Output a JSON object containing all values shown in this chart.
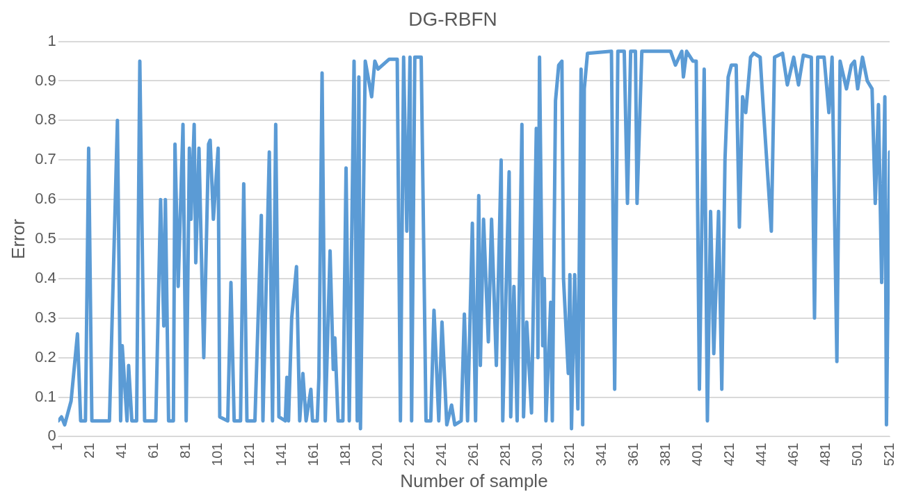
{
  "chart_data": {
    "type": "line",
    "title": "DG-RBFN",
    "xlabel": "Number of sample",
    "ylabel": "Error",
    "xlim": [
      1,
      521
    ],
    "xticks": [
      1,
      21,
      41,
      61,
      81,
      101,
      121,
      141,
      161,
      181,
      201,
      221,
      241,
      261,
      281,
      301,
      321,
      341,
      361,
      381,
      401,
      421,
      441,
      461,
      481,
      501,
      521
    ],
    "ylim": [
      0,
      1
    ],
    "yticks": [
      0,
      0.1,
      0.2,
      0.3,
      0.4,
      0.5,
      0.6,
      0.7,
      0.8,
      0.9,
      1
    ],
    "grid": "y",
    "legend": false,
    "marker": "none",
    "line_style": "solid",
    "series": [
      {
        "color": "#5b9bd5",
        "x": [
          1,
          3,
          5,
          9,
          13,
          15,
          18,
          20,
          22,
          33,
          38,
          40,
          41,
          44,
          45,
          47,
          50,
          52,
          55,
          62,
          65,
          67,
          68,
          70,
          73,
          74,
          76,
          79,
          81,
          83,
          84,
          86,
          87,
          89,
          92,
          95,
          96,
          98,
          101,
          102,
          107,
          109,
          111,
          115,
          117,
          119,
          124,
          128,
          129,
          133,
          135,
          137,
          139,
          143,
          144,
          145,
          147,
          150,
          152,
          154,
          156,
          159,
          160,
          163,
          164,
          166,
          168,
          171,
          173,
          174,
          176,
          179,
          181,
          183,
          186,
          188,
          189,
          190,
          193,
          197,
          199,
          201,
          208,
          213,
          215,
          217,
          219,
          221,
          222,
          224,
          228,
          231,
          234,
          236,
          239,
          241,
          244,
          247,
          249,
          253,
          255,
          257,
          260,
          262,
          264,
          265,
          267,
          270,
          272,
          275,
          278,
          279,
          281,
          283,
          284,
          286,
          288,
          291,
          292,
          294,
          297,
          300,
          301,
          302,
          304,
          305,
          306,
          309,
          310,
          312,
          314,
          316,
          317,
          320,
          321,
          322,
          324,
          326,
          328,
          329,
          330,
          332,
          347,
          349,
          351,
          355,
          357,
          359,
          362,
          363,
          366,
          384,
          387,
          391,
          392,
          394,
          398,
          400,
          402,
          405,
          407,
          409,
          411,
          414,
          416,
          418,
          420,
          422,
          425,
          427,
          429,
          431,
          434,
          436,
          440,
          442,
          447,
          449,
          454,
          457,
          461,
          464,
          467,
          472,
          474,
          476,
          480,
          483,
          485,
          488,
          490,
          494,
          497,
          499,
          501,
          504,
          507,
          510,
          512,
          514,
          516,
          518,
          519,
          521
        ],
        "values": [
          0.04,
          0.05,
          0.03,
          0.09,
          0.26,
          0.04,
          0.04,
          0.73,
          0.04,
          0.04,
          0.8,
          0.04,
          0.23,
          0.04,
          0.18,
          0.04,
          0.04,
          0.95,
          0.04,
          0.04,
          0.6,
          0.28,
          0.6,
          0.04,
          0.04,
          0.74,
          0.38,
          0.79,
          0.04,
          0.73,
          0.55,
          0.79,
          0.44,
          0.73,
          0.2,
          0.74,
          0.75,
          0.55,
          0.73,
          0.05,
          0.04,
          0.39,
          0.04,
          0.04,
          0.64,
          0.04,
          0.04,
          0.56,
          0.04,
          0.72,
          0.04,
          0.79,
          0.05,
          0.04,
          0.15,
          0.04,
          0.3,
          0.43,
          0.04,
          0.16,
          0.04,
          0.12,
          0.04,
          0.04,
          0.15,
          0.92,
          0.04,
          0.47,
          0.17,
          0.25,
          0.04,
          0.04,
          0.68,
          0.04,
          0.95,
          0.04,
          0.91,
          0.02,
          0.95,
          0.86,
          0.95,
          0.93,
          0.955,
          0.955,
          0.04,
          0.96,
          0.52,
          0.96,
          0.04,
          0.96,
          0.96,
          0.04,
          0.04,
          0.32,
          0.04,
          0.29,
          0.03,
          0.08,
          0.03,
          0.04,
          0.31,
          0.04,
          0.54,
          0.04,
          0.61,
          0.18,
          0.55,
          0.24,
          0.55,
          0.18,
          0.7,
          0.04,
          0.36,
          0.67,
          0.05,
          0.38,
          0.04,
          0.79,
          0.05,
          0.29,
          0.06,
          0.78,
          0.2,
          0.96,
          0.23,
          0.4,
          0.04,
          0.34,
          0.04,
          0.85,
          0.94,
          0.95,
          0.4,
          0.16,
          0.41,
          0.02,
          0.41,
          0.07,
          0.93,
          0.03,
          0.88,
          0.97,
          0.975,
          0.12,
          0.975,
          0.975,
          0.59,
          0.975,
          0.975,
          0.59,
          0.975,
          0.975,
          0.94,
          0.975,
          0.91,
          0.975,
          0.95,
          0.95,
          0.12,
          0.93,
          0.04,
          0.57,
          0.21,
          0.57,
          0.12,
          0.7,
          0.91,
          0.94,
          0.94,
          0.53,
          0.86,
          0.82,
          0.96,
          0.97,
          0.96,
          0.83,
          0.52,
          0.96,
          0.97,
          0.89,
          0.96,
          0.89,
          0.965,
          0.96,
          0.3,
          0.96,
          0.96,
          0.82,
          0.96,
          0.19,
          0.95,
          0.88,
          0.94,
          0.95,
          0.88,
          0.96,
          0.9,
          0.88,
          0.59,
          0.84,
          0.39,
          0.86,
          0.03,
          0.72
        ]
      }
    ]
  }
}
